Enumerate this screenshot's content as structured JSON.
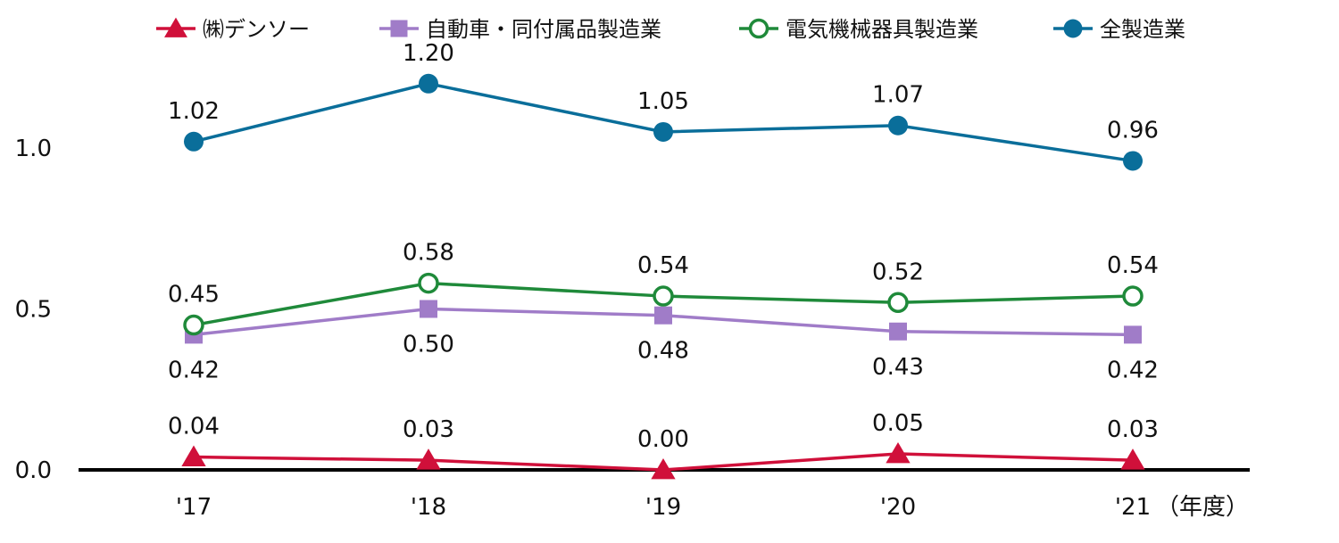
{
  "chart_data": {
    "type": "line",
    "categories": [
      "'17",
      "'18",
      "'19",
      "'20",
      "'21"
    ],
    "unit_label": "（年度）",
    "ylim": [
      0.0,
      1.2
    ],
    "yticks": [
      "0.0",
      "0.5",
      "1.0"
    ],
    "ytick_values": [
      0.0,
      0.5,
      1.0
    ],
    "legend_position": "top",
    "series": [
      {
        "name": "㈱デンソー",
        "marker": "triangle",
        "color": "#d0103a",
        "values": [
          0.04,
          0.03,
          0.0,
          0.05,
          0.03
        ],
        "labels": [
          "0.04",
          "0.03",
          "0.00",
          "0.05",
          "0.03"
        ],
        "label_pos": "above"
      },
      {
        "name": "自動車・同付属品製造業",
        "marker": "square",
        "color": "#a07cc8",
        "values": [
          0.42,
          0.5,
          0.48,
          0.43,
          0.42
        ],
        "labels": [
          "0.42",
          "0.50",
          "0.48",
          "0.43",
          "0.42"
        ],
        "label_pos": "below"
      },
      {
        "name": "電気機械器具製造業",
        "marker": "open-circle",
        "color": "#1f8a3a",
        "values": [
          0.45,
          0.58,
          0.54,
          0.52,
          0.54
        ],
        "labels": [
          "0.45",
          "0.58",
          "0.54",
          "0.52",
          "0.54"
        ],
        "label_pos": "above"
      },
      {
        "name": "全製造業",
        "marker": "circle",
        "color": "#0a6e9a",
        "values": [
          1.02,
          1.2,
          1.05,
          1.07,
          0.96
        ],
        "labels": [
          "1.02",
          "1.20",
          "1.05",
          "1.07",
          "0.96"
        ],
        "label_pos": "above"
      }
    ]
  }
}
